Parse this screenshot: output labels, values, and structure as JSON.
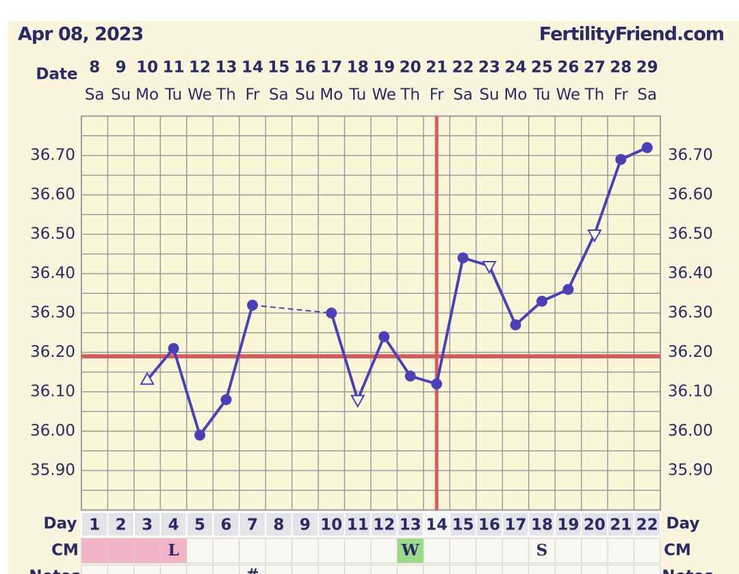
{
  "header": {
    "date": "Apr 08, 2023",
    "site": "FertilityFriend.com"
  },
  "chart_data": {
    "type": "line",
    "date_label": "Date",
    "categories": [
      "8",
      "9",
      "10",
      "11",
      "12",
      "13",
      "14",
      "15",
      "16",
      "17",
      "18",
      "19",
      "20",
      "21",
      "22",
      "23",
      "24",
      "25",
      "26",
      "27",
      "28",
      "29"
    ],
    "weekdays": [
      "Sa",
      "Su",
      "Mo",
      "Tu",
      "We",
      "Th",
      "Fr",
      "Sa",
      "Su",
      "Mo",
      "Tu",
      "We",
      "Th",
      "Fr",
      "Sa",
      "Su",
      "Mo",
      "Tu",
      "We",
      "Th",
      "Fr",
      "Sa"
    ],
    "day_label": "Day",
    "days": [
      1,
      2,
      3,
      4,
      5,
      6,
      7,
      8,
      9,
      10,
      11,
      12,
      13,
      14,
      15,
      16,
      17,
      18,
      19,
      20,
      21,
      22
    ],
    "series": [
      {
        "color": "#4b40b8",
        "values": [
          null,
          null,
          36.13,
          36.21,
          35.99,
          36.08,
          36.32,
          null,
          null,
          36.3,
          36.08,
          36.24,
          36.14,
          36.12,
          36.44,
          36.42,
          36.27,
          36.33,
          36.36,
          36.5,
          36.69,
          36.72
        ],
        "markers": [
          null,
          null,
          "open-up",
          "dot",
          "dot",
          "dot",
          "dot",
          null,
          null,
          "dot",
          "open-down",
          "dot",
          "dot",
          "dot",
          "dot",
          "open-down",
          "dot",
          "dot",
          "dot",
          "open-down",
          "dot",
          "dot"
        ]
      }
    ],
    "ylim": [
      35.8,
      36.8
    ],
    "yticks": [
      {
        "value": 35.9,
        "label": "35.90"
      },
      {
        "value": 36.0,
        "label": "36.00"
      },
      {
        "value": 36.1,
        "label": "36.10"
      },
      {
        "value": 36.2,
        "label": "36.20"
      },
      {
        "value": 36.3,
        "label": "36.30"
      },
      {
        "value": 36.4,
        "label": "36.40"
      },
      {
        "value": 36.5,
        "label": "36.50"
      },
      {
        "value": 36.6,
        "label": "36.60"
      },
      {
        "value": 36.7,
        "label": "36.70"
      }
    ],
    "grid": true,
    "coverline": 36.19,
    "ovulation_day": 14,
    "reference_color": "#d65a5c",
    "cm": {
      "label": "CM",
      "values": [
        null,
        null,
        null,
        "L",
        null,
        null,
        null,
        null,
        null,
        null,
        null,
        null,
        "W",
        null,
        null,
        null,
        null,
        "S",
        null,
        null,
        null,
        null
      ],
      "colors": [
        "#f2b3c6",
        "#f2b3c6",
        "#f2b3c6",
        "#f2b3c6",
        null,
        null,
        null,
        null,
        null,
        null,
        null,
        null,
        "#9ad98a",
        null,
        null,
        null,
        null,
        null,
        null,
        null,
        null,
        null
      ]
    },
    "notes": {
      "label": "Notes",
      "values": [
        null,
        null,
        null,
        null,
        null,
        null,
        "#",
        null,
        null,
        null,
        null,
        null,
        null,
        null,
        null,
        null,
        null,
        null,
        null,
        null,
        null,
        null
      ]
    }
  }
}
